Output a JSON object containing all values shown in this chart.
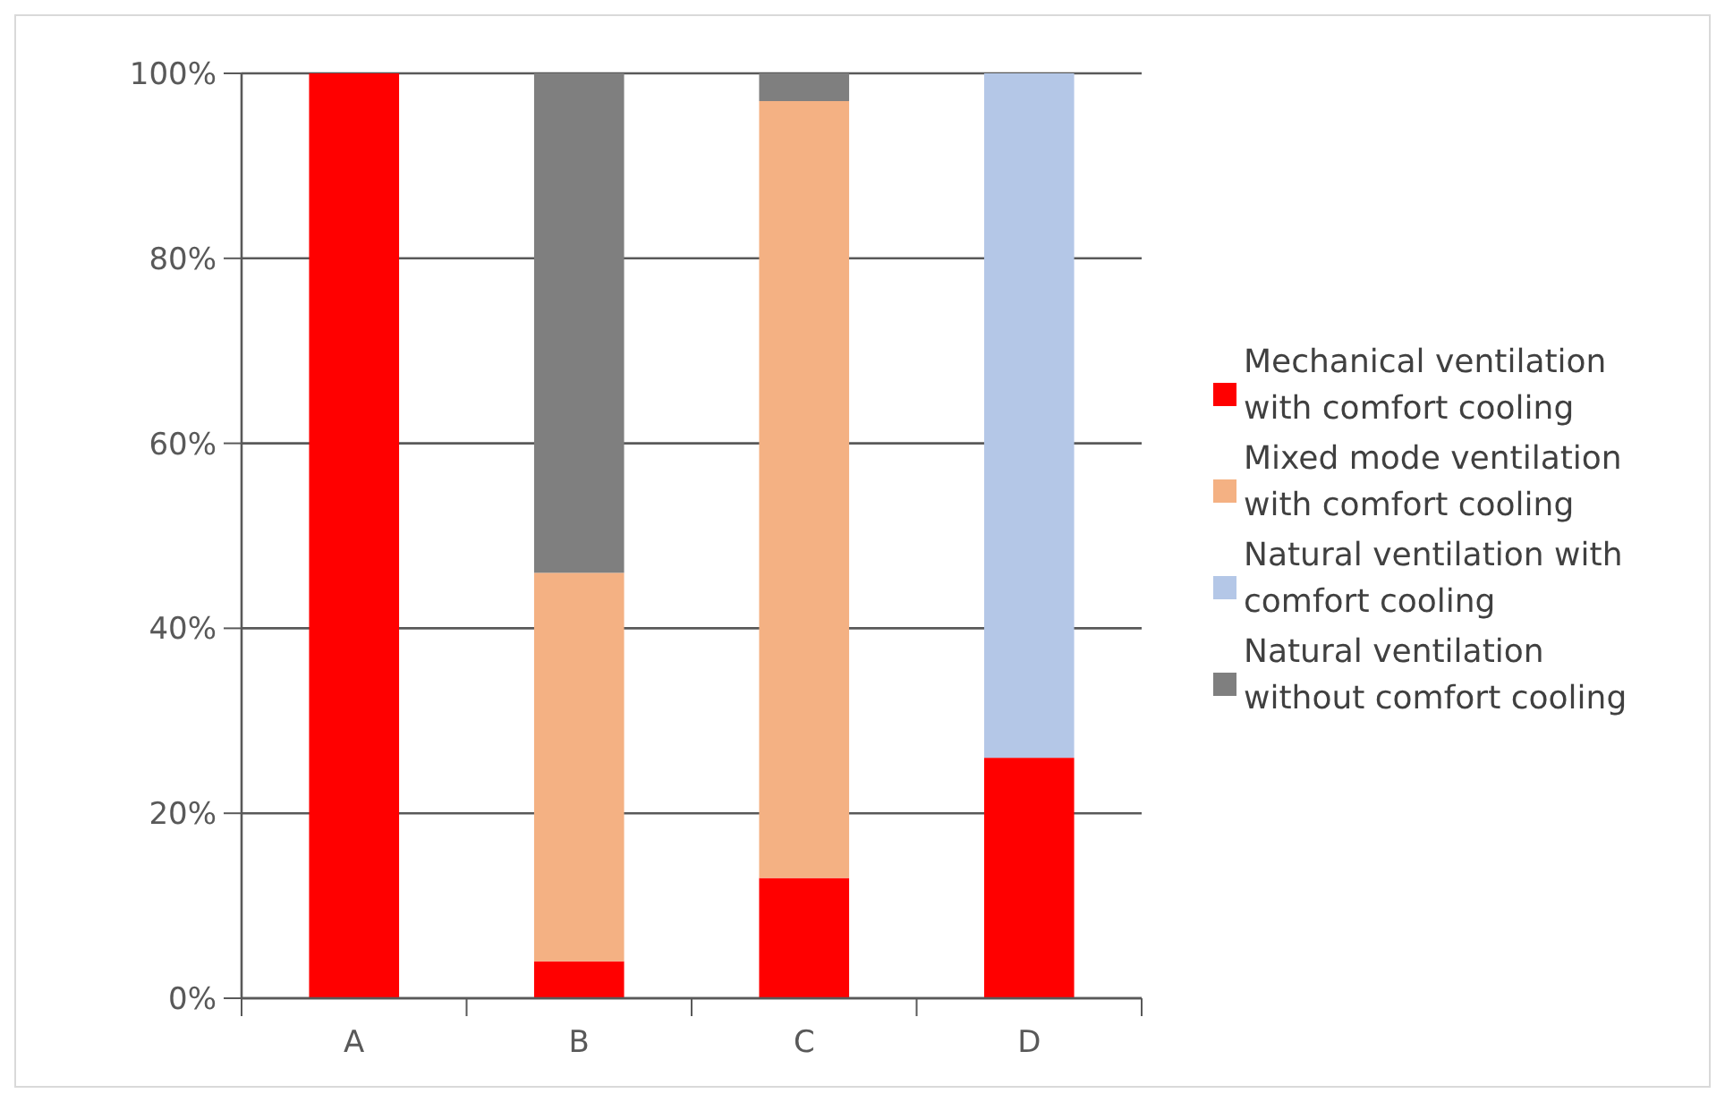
{
  "chart_data": {
    "type": "bar",
    "stacked": true,
    "categories": [
      "A",
      "B",
      "C",
      "D"
    ],
    "series": [
      {
        "name": "Mechanical ventilation with comfort cooling",
        "color": "#ff0000",
        "values": [
          100,
          4,
          13,
          26
        ]
      },
      {
        "name": "Mixed mode ventilation with comfort cooling",
        "color": "#f4b183",
        "values": [
          0,
          42,
          84,
          0
        ]
      },
      {
        "name": "Natural ventilation with comfort cooling",
        "color": "#b4c7e7",
        "values": [
          0,
          0,
          0,
          74
        ]
      },
      {
        "name": "Natural ventilation without comfort cooling",
        "color": "#7f7f7f",
        "values": [
          0,
          54,
          3,
          0
        ]
      }
    ],
    "ylim": [
      0,
      100
    ],
    "yticks": [
      {
        "value": 0,
        "label": "0%"
      },
      {
        "value": 20,
        "label": "20%"
      },
      {
        "value": 40,
        "label": "40%"
      },
      {
        "value": 60,
        "label": "60%"
      },
      {
        "value": 80,
        "label": "80%"
      },
      {
        "value": 100,
        "label": "100%"
      }
    ],
    "grid": "y",
    "legend": "right"
  }
}
